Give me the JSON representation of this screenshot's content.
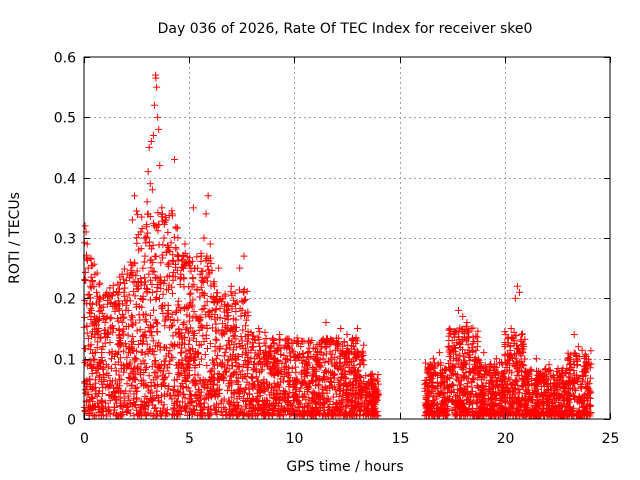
{
  "chart_data": {
    "type": "scatter",
    "title": "Day 036 of 2026, Rate Of TEC Index for receiver ske0",
    "xlabel": "GPS time / hours",
    "ylabel": "ROTI / TECUs",
    "xlim": [
      0,
      25
    ],
    "ylim": [
      0,
      0.6
    ],
    "xticks": [
      0,
      5,
      10,
      15,
      20,
      25
    ],
    "xtick_labels": [
      "0",
      "5",
      "10",
      "15",
      "20",
      "25"
    ],
    "yticks": [
      0,
      0.1,
      0.2,
      0.3,
      0.4,
      0.5,
      0.6
    ],
    "ytick_labels": [
      "0",
      "0.1",
      "0.2",
      "0.3",
      "0.4",
      "0.5",
      "0.6"
    ],
    "grid": true,
    "marker": "+",
    "series": [
      {
        "name": "ROTI",
        "color": "#ff0000",
        "points": [
          [
            0.05,
            0.32
          ],
          [
            0.1,
            0.31
          ],
          [
            0.15,
            0.29
          ],
          [
            0.2,
            0.25
          ],
          [
            0.3,
            0.22
          ],
          [
            0.4,
            0.19
          ],
          [
            0.5,
            0.17
          ],
          [
            0.6,
            0.21
          ],
          [
            0.7,
            0.15
          ],
          [
            0.8,
            0.18
          ],
          [
            0.9,
            0.12
          ],
          [
            1.0,
            0.16
          ],
          [
            1.1,
            0.14
          ],
          [
            1.2,
            0.11
          ],
          [
            1.4,
            0.15
          ],
          [
            1.5,
            0.19
          ],
          [
            1.7,
            0.13
          ],
          [
            1.9,
            0.21
          ],
          [
            2.1,
            0.18
          ],
          [
            2.2,
            0.26
          ],
          [
            2.3,
            0.33
          ],
          [
            2.4,
            0.37
          ],
          [
            2.5,
            0.22
          ],
          [
            2.6,
            0.28
          ],
          [
            2.7,
            0.31
          ],
          [
            2.8,
            0.25
          ],
          [
            2.9,
            0.27
          ],
          [
            3.0,
            0.36
          ],
          [
            3.05,
            0.41
          ],
          [
            3.1,
            0.45
          ],
          [
            3.15,
            0.39
          ],
          [
            3.2,
            0.46
          ],
          [
            3.25,
            0.38
          ],
          [
            3.3,
            0.47
          ],
          [
            3.35,
            0.52
          ],
          [
            3.4,
            0.57
          ],
          [
            3.42,
            0.565
          ],
          [
            3.45,
            0.55
          ],
          [
            3.5,
            0.5
          ],
          [
            3.55,
            0.48
          ],
          [
            3.6,
            0.42
          ],
          [
            3.7,
            0.35
          ],
          [
            3.8,
            0.3
          ],
          [
            3.9,
            0.33
          ],
          [
            4.0,
            0.28
          ],
          [
            4.2,
            0.34
          ],
          [
            4.3,
            0.43
          ],
          [
            4.5,
            0.27
          ],
          [
            4.6,
            0.24
          ],
          [
            4.8,
            0.29
          ],
          [
            5.0,
            0.26
          ],
          [
            5.2,
            0.35
          ],
          [
            5.4,
            0.25
          ],
          [
            5.6,
            0.23
          ],
          [
            5.7,
            0.3
          ],
          [
            5.8,
            0.34
          ],
          [
            5.9,
            0.37
          ],
          [
            6.0,
            0.29
          ],
          [
            6.2,
            0.22
          ],
          [
            6.4,
            0.25
          ],
          [
            6.6,
            0.2
          ],
          [
            6.8,
            0.18
          ],
          [
            7.0,
            0.22
          ],
          [
            7.2,
            0.19
          ],
          [
            7.4,
            0.25
          ],
          [
            7.6,
            0.27
          ],
          [
            7.8,
            0.14
          ],
          [
            8.0,
            0.12
          ],
          [
            8.3,
            0.15
          ],
          [
            8.6,
            0.11
          ],
          [
            9.0,
            0.13
          ],
          [
            9.3,
            0.14
          ],
          [
            9.6,
            0.1
          ],
          [
            10.0,
            0.13
          ],
          [
            10.3,
            0.12
          ],
          [
            10.6,
            0.09
          ],
          [
            11.0,
            0.1
          ],
          [
            11.3,
            0.12
          ],
          [
            11.5,
            0.16
          ],
          [
            11.8,
            0.13
          ],
          [
            12.2,
            0.15
          ],
          [
            12.5,
            0.14
          ],
          [
            12.8,
            0.12
          ],
          [
            13.0,
            0.15
          ],
          [
            13.3,
            0.09
          ],
          [
            13.6,
            0.06
          ],
          [
            14.0,
            0.04
          ],
          [
            16.3,
            0.06
          ],
          [
            16.6,
            0.1
          ],
          [
            16.9,
            0.11
          ],
          [
            17.2,
            0.08
          ],
          [
            17.5,
            0.13
          ],
          [
            17.8,
            0.18
          ],
          [
            18.0,
            0.17
          ],
          [
            18.2,
            0.16
          ],
          [
            18.4,
            0.15
          ],
          [
            18.7,
            0.12
          ],
          [
            19.0,
            0.11
          ],
          [
            19.3,
            0.09
          ],
          [
            19.6,
            0.1
          ],
          [
            20.0,
            0.12
          ],
          [
            20.3,
            0.15
          ],
          [
            20.5,
            0.2
          ],
          [
            20.6,
            0.22
          ],
          [
            20.7,
            0.21
          ],
          [
            20.9,
            0.12
          ],
          [
            21.2,
            0.08
          ],
          [
            21.5,
            0.1
          ],
          [
            21.8,
            0.07
          ],
          [
            22.1,
            0.09
          ],
          [
            22.4,
            0.06
          ],
          [
            22.7,
            0.08
          ],
          [
            23.0,
            0.1
          ],
          [
            23.3,
            0.14
          ],
          [
            23.5,
            0.12
          ],
          [
            23.8,
            0.08
          ],
          [
            24.0,
            0.05
          ]
        ]
      }
    ]
  }
}
